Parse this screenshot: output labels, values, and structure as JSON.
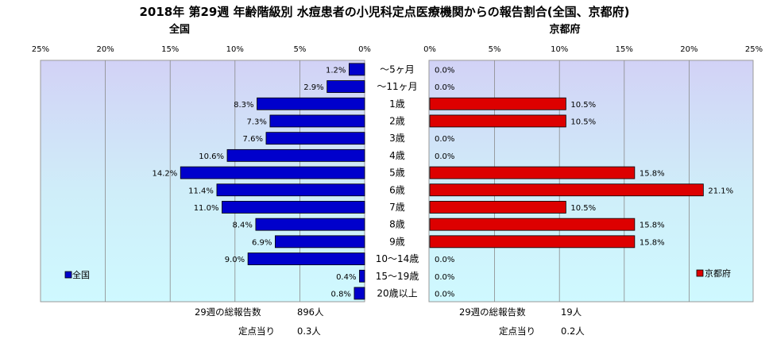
{
  "title": "2018年 第29週 年齢階級別 水痘患者の小児科定点医療機関からの報告割合(全国、京都府)",
  "chart_data": [
    {
      "type": "bar",
      "orientation": "horizontal",
      "direction": "right-to-left",
      "title": "全国",
      "series": [
        {
          "name": "全国",
          "color": "#0000cc",
          "values": [
            1.2,
            2.9,
            8.3,
            7.3,
            7.6,
            10.6,
            14.2,
            11.4,
            11.0,
            8.4,
            6.9,
            9.0,
            0.4,
            0.8
          ]
        }
      ],
      "value_labels": [
        "1.2%",
        "2.9%",
        "8.3%",
        "7.3%",
        "7.6%",
        "10.6%",
        "14.2%",
        "11.4%",
        "11.0%",
        "8.4%",
        "6.9%",
        "9.0%",
        "0.4%",
        "0.8%"
      ],
      "xlim": [
        0,
        25
      ],
      "tick_labels": [
        "25%",
        "20%",
        "15%",
        "10%",
        "5%",
        "0%"
      ],
      "grid": true,
      "legend_position": "bottom-left",
      "plot_background": "gradient-lavender-cyan"
    },
    {
      "type": "bar",
      "orientation": "horizontal",
      "title": "京都府",
      "series": [
        {
          "name": "京都府",
          "color": "#dd0000",
          "values": [
            0.0,
            0.0,
            10.5,
            10.5,
            0.0,
            0.0,
            15.8,
            21.1,
            10.5,
            15.8,
            15.8,
            0.0,
            0.0,
            0.0
          ]
        }
      ],
      "value_labels": [
        "0.0%",
        "0.0%",
        "10.5%",
        "10.5%",
        "0.0%",
        "0.0%",
        "15.8%",
        "21.1%",
        "10.5%",
        "15.8%",
        "15.8%",
        "0.0%",
        "0.0%",
        "0.0%"
      ],
      "xlim": [
        0,
        25
      ],
      "tick_labels": [
        "0%",
        "5%",
        "10%",
        "15%",
        "20%",
        "25%"
      ],
      "grid": true,
      "legend_position": "bottom-right",
      "plot_background": "gradient-lavender-cyan"
    }
  ],
  "categories": [
    "～5ヶ月",
    "～11ヶ月",
    "1歳",
    "2歳",
    "3歳",
    "4歳",
    "5歳",
    "6歳",
    "7歳",
    "8歳",
    "9歳",
    "10～14歳",
    "15～19歳",
    "20歳以上"
  ],
  "footer": {
    "national": {
      "total_label": "29週の総報告数",
      "total_value": "896人",
      "per_label": "定点当り",
      "per_value": "0.3人"
    },
    "kyoto": {
      "total_label": "29週の総報告数",
      "total_value": "19人",
      "per_label": "定点当り",
      "per_value": "0.2人"
    }
  }
}
